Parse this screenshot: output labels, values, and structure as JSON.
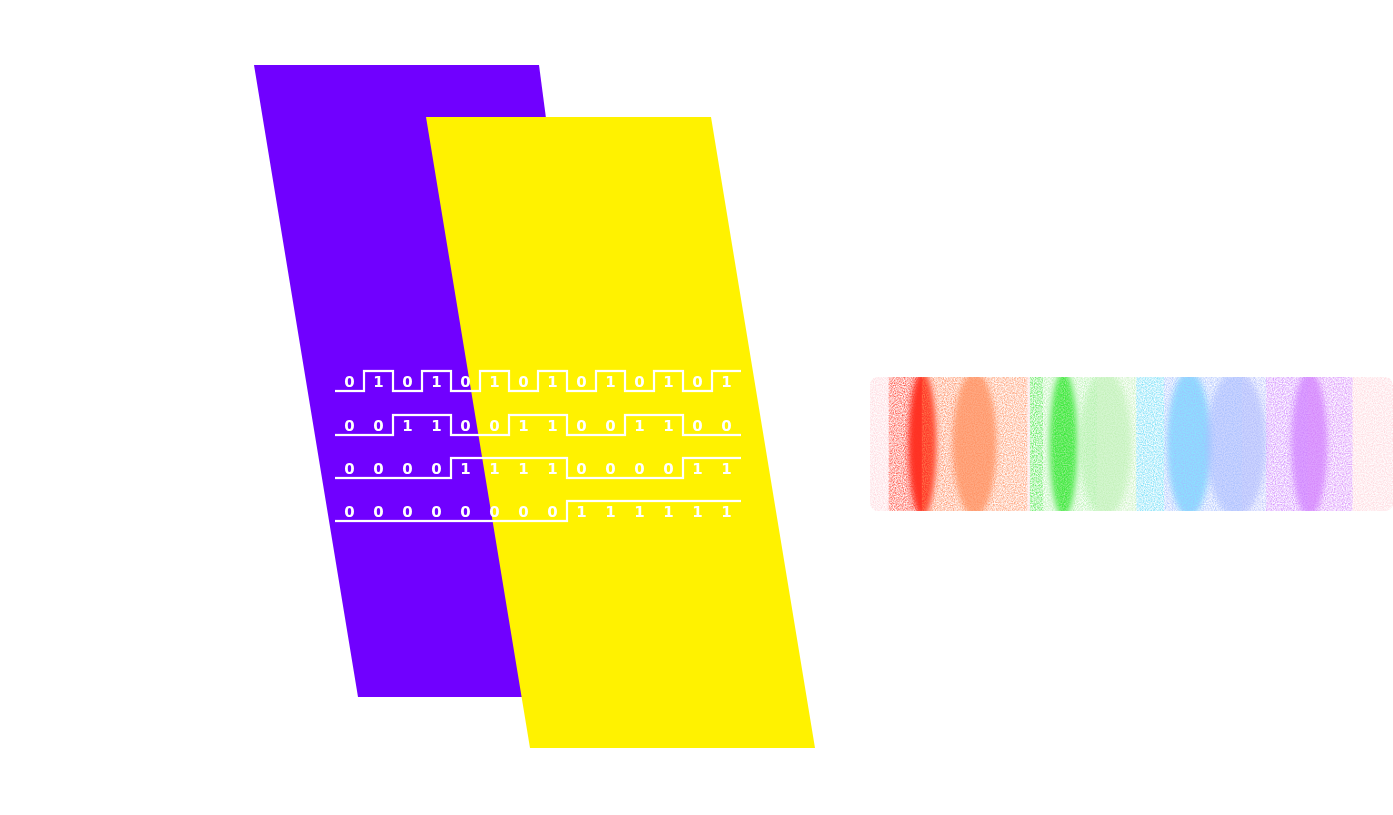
{
  "colors": {
    "background": "#ffffff",
    "violet_panel": "#7000ff",
    "yellow_panel": "#fff200",
    "signal": "#ffffff"
  },
  "signals": [
    {
      "bits": [
        "0",
        "1",
        "0",
        "1",
        "0",
        "1",
        "0",
        "1",
        "0",
        "1",
        "0",
        "1",
        "0",
        "1"
      ]
    },
    {
      "bits": [
        "0",
        "0",
        "1",
        "1",
        "0",
        "0",
        "1",
        "1",
        "0",
        "0",
        "1",
        "1",
        "0",
        "0"
      ]
    },
    {
      "bits": [
        "0",
        "0",
        "0",
        "0",
        "1",
        "1",
        "1",
        "1",
        "0",
        "0",
        "0",
        "0",
        "1",
        "1"
      ]
    },
    {
      "bits": [
        "0",
        "0",
        "0",
        "0",
        "0",
        "0",
        "0",
        "0",
        "1",
        "1",
        "1",
        "1",
        "1",
        "1"
      ]
    }
  ],
  "spectrum": {
    "bands": [
      {
        "color": "#ff2a1a",
        "position": 0.1
      },
      {
        "color": "#ff8a55",
        "position": 0.2
      },
      {
        "color": "#2ee82e",
        "position": 0.37
      },
      {
        "color": "#b8f2b0",
        "position": 0.45
      },
      {
        "color": "#5ad8ff",
        "position": 0.61
      },
      {
        "color": "#a9b8ff",
        "position": 0.7
      },
      {
        "color": "#d07bff",
        "position": 0.84
      }
    ]
  }
}
